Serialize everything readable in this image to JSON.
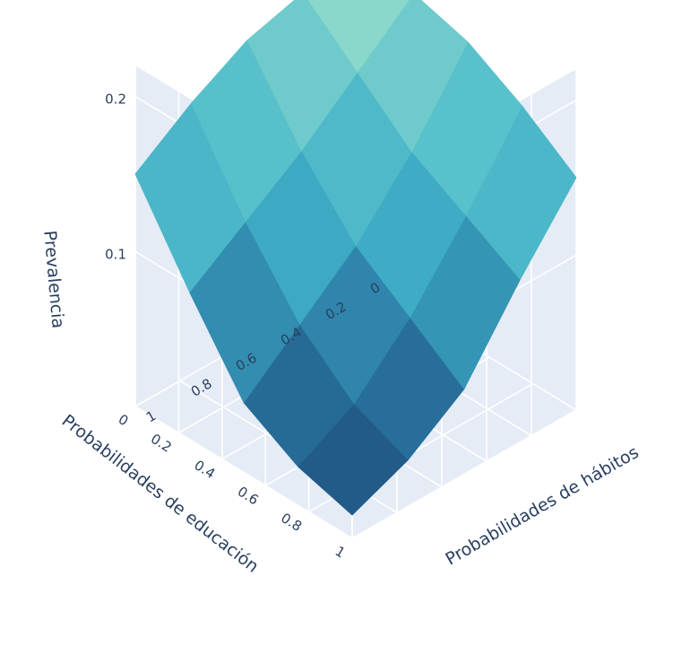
{
  "chart_data": {
    "type": "surface",
    "x_axis": {
      "title": "Probabilidades de hábitos",
      "range": [
        0,
        1
      ],
      "ticks": [
        0,
        0.2,
        0.4,
        0.6,
        0.8,
        1
      ],
      "tick_labels": [
        "0",
        "0.2",
        "0.4",
        "0.6",
        "0.8",
        "1"
      ]
    },
    "y_axis": {
      "title": "Probabilidades de educación",
      "range": [
        0,
        1
      ],
      "ticks": [
        0,
        0.2,
        0.4,
        0.6,
        0.8,
        1
      ],
      "tick_labels": [
        "0",
        "0.2",
        "0.4",
        "0.6",
        "0.8",
        "1"
      ]
    },
    "z_axis": {
      "title": "Prevalencia",
      "range": [
        0,
        0.22
      ],
      "ticks": [
        0.1,
        0.2
      ],
      "tick_labels": [
        "0.1",
        "0.2"
      ]
    },
    "x": [
      0,
      0.25,
      0.5,
      0.75,
      1
    ],
    "y": [
      0,
      0.25,
      0.5,
      0.75,
      1
    ],
    "z": [
      [
        0.215,
        0.205,
        0.195,
        0.175,
        0.15
      ],
      [
        0.205,
        0.175,
        0.145,
        0.125,
        0.105
      ],
      [
        0.195,
        0.145,
        0.105,
        0.08,
        0.055
      ],
      [
        0.175,
        0.12,
        0.075,
        0.045,
        0.03
      ],
      [
        0.15,
        0.095,
        0.045,
        0.025,
        0.015
      ]
    ],
    "colorscale": [
      "#1f4f7e",
      "#2a7aa3",
      "#3eadc6",
      "#5cc3cb",
      "#9ddfcb"
    ],
    "grid": true,
    "background": "#e5ecf6",
    "legend": "none"
  }
}
